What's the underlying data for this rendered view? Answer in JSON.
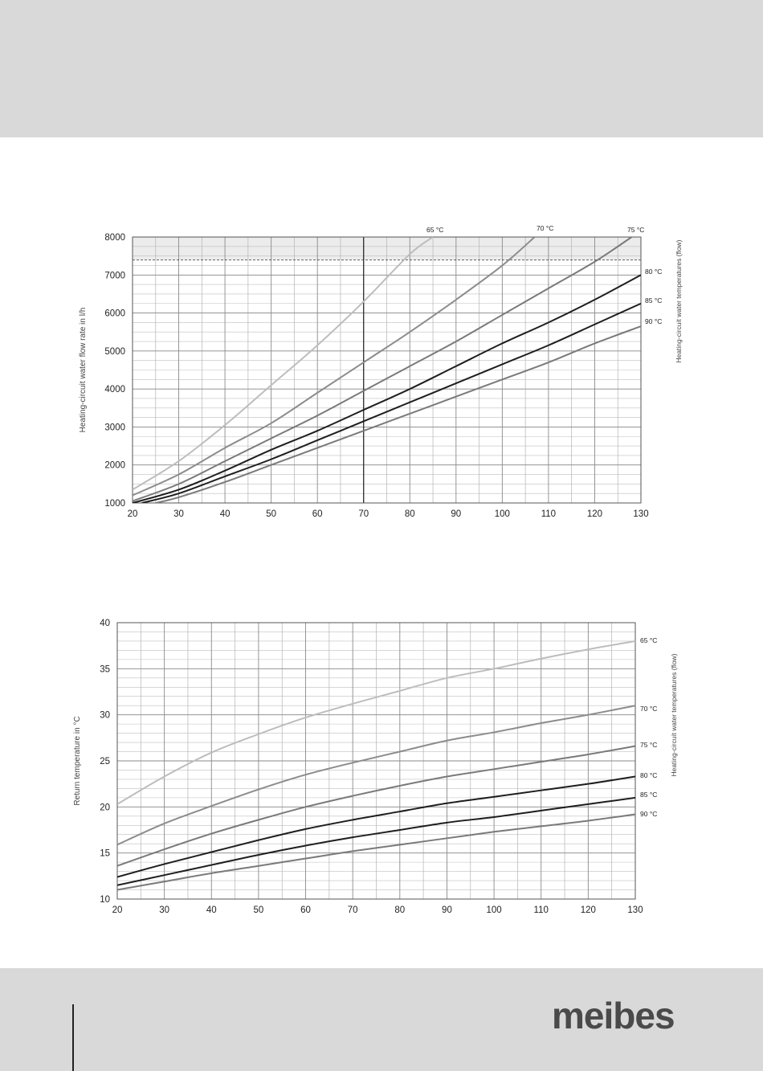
{
  "chart_data": [
    {
      "type": "line",
      "title": "",
      "xlabel": "",
      "ylabel": "Heating-circuit water flow rate in l/h",
      "right_label": "Heating-circuit water temperatures (flow)",
      "xlim": [
        20,
        130
      ],
      "ylim": [
        1000,
        8000
      ],
      "xticks": [
        "20",
        "30",
        "40",
        "50",
        "60",
        "70",
        "80",
        "90",
        "100",
        "110",
        "120",
        "130"
      ],
      "yticks": [
        "1000",
        "2000",
        "3000",
        "4000",
        "5000",
        "6000",
        "7000",
        "8000"
      ],
      "grid": true,
      "limit_line": 7400,
      "reference_x": 70,
      "series": [
        {
          "name": "65 °C",
          "color": "#bdbdbd",
          "points": [
            [
              20,
              1350
            ],
            [
              30,
              2100
            ],
            [
              40,
              3050
            ],
            [
              50,
              4100
            ],
            [
              60,
              5150
            ],
            [
              70,
              6300
            ],
            [
              80,
              7550
            ],
            [
              85,
              8000
            ]
          ]
        },
        {
          "name": "70 °C",
          "color": "#8c8c8c",
          "points": [
            [
              20,
              1200
            ],
            [
              30,
              1750
            ],
            [
              40,
              2450
            ],
            [
              50,
              3100
            ],
            [
              60,
              3900
            ],
            [
              70,
              4700
            ],
            [
              80,
              5500
            ],
            [
              90,
              6350
            ],
            [
              100,
              7250
            ],
            [
              107,
              8000
            ]
          ]
        },
        {
          "name": "75 °C",
          "color": "#7a7a7a",
          "points": [
            [
              20,
              1050
            ],
            [
              30,
              1500
            ],
            [
              40,
              2100
            ],
            [
              50,
              2700
            ],
            [
              60,
              3300
            ],
            [
              70,
              3950
            ],
            [
              80,
              4600
            ],
            [
              90,
              5250
            ],
            [
              100,
              5950
            ],
            [
              110,
              6650
            ],
            [
              120,
              7350
            ],
            [
              128,
              8000
            ]
          ]
        },
        {
          "name": "80 °C",
          "color": "#1e1e1e",
          "points": [
            [
              20,
              1000
            ],
            [
              30,
              1350
            ],
            [
              40,
              1850
            ],
            [
              50,
              2400
            ],
            [
              60,
              2900
            ],
            [
              70,
              3450
            ],
            [
              80,
              4000
            ],
            [
              90,
              4600
            ],
            [
              100,
              5200
            ],
            [
              110,
              5750
            ],
            [
              120,
              6350
            ],
            [
              130,
              7000
            ]
          ]
        },
        {
          "name": "85 °C",
          "color": "#1e1e1e",
          "points": [
            [
              22,
              1000
            ],
            [
              30,
              1250
            ],
            [
              40,
              1700
            ],
            [
              50,
              2150
            ],
            [
              60,
              2650
            ],
            [
              70,
              3150
            ],
            [
              80,
              3650
            ],
            [
              90,
              4150
            ],
            [
              100,
              4650
            ],
            [
              110,
              5150
            ],
            [
              120,
              5700
            ],
            [
              130,
              6250
            ]
          ]
        },
        {
          "name": "90 °C",
          "color": "#7a7a7a",
          "points": [
            [
              25,
              1000
            ],
            [
              30,
              1150
            ],
            [
              40,
              1550
            ],
            [
              50,
              2000
            ],
            [
              60,
              2450
            ],
            [
              70,
              2900
            ],
            [
              80,
              3350
            ],
            [
              90,
              3800
            ],
            [
              100,
              4250
            ],
            [
              110,
              4700
            ],
            [
              120,
              5200
            ],
            [
              130,
              5650
            ]
          ]
        }
      ]
    },
    {
      "type": "line",
      "title": "",
      "xlabel": "",
      "ylabel": "Return temperature in °C",
      "right_label": "Heating-circuit water temperatures (flow)",
      "xlim": [
        20,
        130
      ],
      "ylim": [
        10,
        40
      ],
      "xticks": [
        "20",
        "30",
        "40",
        "50",
        "60",
        "70",
        "80",
        "90",
        "100",
        "110",
        "120",
        "130"
      ],
      "yticks": [
        "10",
        "15",
        "20",
        "25",
        "30",
        "35",
        "40"
      ],
      "grid": true,
      "series": [
        {
          "name": "65 °C",
          "color": "#bdbdbd",
          "points": [
            [
              20,
              20.3
            ],
            [
              30,
              23.3
            ],
            [
              40,
              25.9
            ],
            [
              50,
              27.9
            ],
            [
              60,
              29.7
            ],
            [
              70,
              31.2
            ],
            [
              80,
              32.6
            ],
            [
              90,
              34.0
            ],
            [
              100,
              35.0
            ],
            [
              110,
              36.1
            ],
            [
              120,
              37.1
            ],
            [
              130,
              38.0
            ]
          ]
        },
        {
          "name": "70 °C",
          "color": "#8c8c8c",
          "points": [
            [
              20,
              15.9
            ],
            [
              30,
              18.2
            ],
            [
              40,
              20.1
            ],
            [
              50,
              21.9
            ],
            [
              60,
              23.5
            ],
            [
              70,
              24.8
            ],
            [
              80,
              26.0
            ],
            [
              90,
              27.2
            ],
            [
              100,
              28.1
            ],
            [
              110,
              29.1
            ],
            [
              120,
              30.0
            ],
            [
              130,
              31.0
            ]
          ]
        },
        {
          "name": "75 °C",
          "color": "#7a7a7a",
          "points": [
            [
              20,
              13.6
            ],
            [
              30,
              15.4
            ],
            [
              40,
              17.1
            ],
            [
              50,
              18.6
            ],
            [
              60,
              20.0
            ],
            [
              70,
              21.2
            ],
            [
              80,
              22.3
            ],
            [
              90,
              23.3
            ],
            [
              100,
              24.1
            ],
            [
              110,
              24.9
            ],
            [
              120,
              25.7
            ],
            [
              130,
              26.6
            ]
          ]
        },
        {
          "name": "80 °C",
          "color": "#1e1e1e",
          "points": [
            [
              20,
              12.4
            ],
            [
              30,
              13.8
            ],
            [
              40,
              15.1
            ],
            [
              50,
              16.4
            ],
            [
              60,
              17.6
            ],
            [
              70,
              18.6
            ],
            [
              80,
              19.5
            ],
            [
              90,
              20.4
            ],
            [
              100,
              21.1
            ],
            [
              110,
              21.8
            ],
            [
              120,
              22.5
            ],
            [
              130,
              23.3
            ]
          ]
        },
        {
          "name": "85 °C",
          "color": "#1e1e1e",
          "points": [
            [
              20,
              11.5
            ],
            [
              30,
              12.6
            ],
            [
              40,
              13.7
            ],
            [
              50,
              14.8
            ],
            [
              60,
              15.8
            ],
            [
              70,
              16.7
            ],
            [
              80,
              17.5
            ],
            [
              90,
              18.3
            ],
            [
              100,
              18.9
            ],
            [
              110,
              19.6
            ],
            [
              120,
              20.3
            ],
            [
              130,
              21.0
            ]
          ]
        },
        {
          "name": "90 °C",
          "color": "#7a7a7a",
          "points": [
            [
              20,
              11.0
            ],
            [
              30,
              11.9
            ],
            [
              40,
              12.8
            ],
            [
              50,
              13.6
            ],
            [
              60,
              14.4
            ],
            [
              70,
              15.2
            ],
            [
              80,
              15.9
            ],
            [
              90,
              16.6
            ],
            [
              100,
              17.3
            ],
            [
              110,
              17.9
            ],
            [
              120,
              18.5
            ],
            [
              130,
              19.2
            ]
          ]
        }
      ]
    }
  ],
  "footer": {
    "logo_text": "meibes"
  }
}
